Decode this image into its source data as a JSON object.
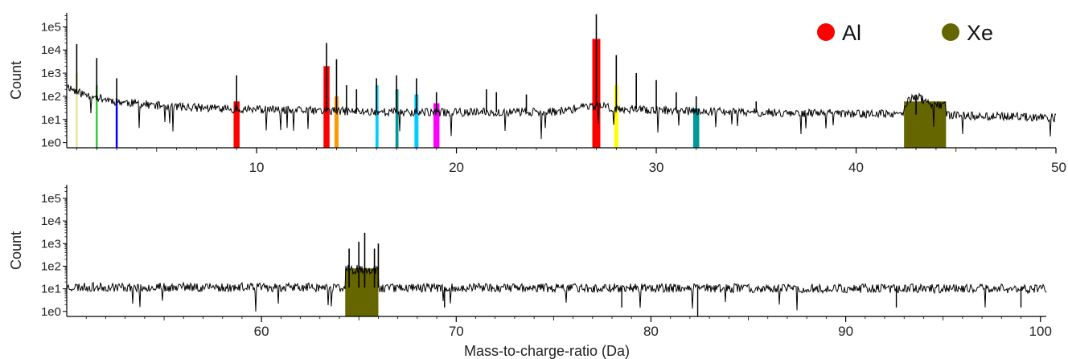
{
  "chart_data": [
    {
      "type": "line",
      "xlim": [
        0.5,
        50
      ],
      "ylim": [
        0.6,
        400000
      ],
      "y_scale": "log",
      "ylabel": "Count",
      "xlabel": "",
      "x_ticks": [
        "10",
        "20",
        "30",
        "40",
        "50"
      ],
      "y_ticks": [
        "1e0",
        "1e1",
        "1e2",
        "1e3",
        "1e4",
        "1e5"
      ],
      "legend": {
        "placement": "top-right",
        "entries": [
          {
            "label": "Al",
            "color": "#ff0000"
          },
          {
            "label": "Xe",
            "color": "#666600"
          }
        ]
      },
      "background": {
        "baseline": [
          [
            0.5,
            300
          ],
          [
            1,
            150
          ],
          [
            2,
            90
          ],
          [
            3,
            60
          ],
          [
            5,
            40
          ],
          [
            8,
            30
          ],
          [
            12,
            25
          ],
          [
            15,
            22
          ],
          [
            20,
            20
          ],
          [
            25,
            22
          ],
          [
            27,
            40
          ],
          [
            28,
            30
          ],
          [
            30,
            25
          ],
          [
            35,
            20
          ],
          [
            40,
            18
          ],
          [
            45,
            15
          ],
          [
            50,
            12
          ]
        ],
        "noise": 0.18,
        "seed": 11
      },
      "peaks": [
        {
          "x": 1.0,
          "count": 18000
        },
        {
          "x": 2.0,
          "count": 4500
        },
        {
          "x": 3.0,
          "count": 600
        },
        {
          "x": 9.0,
          "count": 800
        },
        {
          "x": 13.5,
          "count": 20000
        },
        {
          "x": 14.0,
          "count": 4000
        },
        {
          "x": 14.5,
          "count": 300
        },
        {
          "x": 15.0,
          "count": 200
        },
        {
          "x": 16.0,
          "count": 600
        },
        {
          "x": 17.0,
          "count": 800
        },
        {
          "x": 18.0,
          "count": 600
        },
        {
          "x": 19.0,
          "count": 150
        },
        {
          "x": 21.5,
          "count": 200
        },
        {
          "x": 22.0,
          "count": 150
        },
        {
          "x": 23.5,
          "count": 120
        },
        {
          "x": 27.0,
          "count": 350000
        },
        {
          "x": 28.0,
          "count": 6000
        },
        {
          "x": 29.0,
          "count": 1000
        },
        {
          "x": 30.0,
          "count": 500
        },
        {
          "x": 31.0,
          "count": 150
        },
        {
          "x": 32.0,
          "count": 100
        },
        {
          "x": 35.0,
          "count": 60
        },
        {
          "x": 43.0,
          "count": 120
        }
      ],
      "bands": [
        {
          "x0": 0.95,
          "x1": 1.05,
          "color": "#e6e6a0",
          "top": 1000
        },
        {
          "x0": 1.95,
          "x1": 2.05,
          "color": "#33cc33",
          "top": 300
        },
        {
          "x0": 2.95,
          "x1": 3.05,
          "color": "#0000ff",
          "top": 80
        },
        {
          "x0": 8.85,
          "x1": 9.15,
          "color": "#ff0000",
          "top": 60
        },
        {
          "x0": 13.35,
          "x1": 13.65,
          "color": "#ff0000",
          "top": 2000
        },
        {
          "x0": 13.9,
          "x1": 14.1,
          "color": "#ff9900",
          "top": 100
        },
        {
          "x0": 15.95,
          "x1": 16.1,
          "color": "#00ccff",
          "top": 300
        },
        {
          "x0": 16.95,
          "x1": 17.1,
          "color": "#009999",
          "top": 200
        },
        {
          "x0": 17.9,
          "x1": 18.1,
          "color": "#00ccff",
          "top": 120
        },
        {
          "x0": 18.85,
          "x1": 19.15,
          "color": "#ff00ff",
          "top": 50
        },
        {
          "x0": 26.8,
          "x1": 27.2,
          "color": "#ff0000",
          "top": 30000
        },
        {
          "x0": 27.9,
          "x1": 28.1,
          "color": "#ffff00",
          "top": 300
        },
        {
          "x0": 31.85,
          "x1": 32.15,
          "color": "#009999",
          "top": 30
        },
        {
          "x0": 42.4,
          "x1": 44.5,
          "color": "#666600",
          "top": 60
        }
      ]
    },
    {
      "type": "line",
      "xlim": [
        50,
        100.3
      ],
      "ylim": [
        0.6,
        400000
      ],
      "y_scale": "log",
      "ylabel": "Count",
      "xlabel": "Mass-to-charge-ratio  (Da)",
      "x_ticks": [
        "60",
        "70",
        "80",
        "90",
        "100"
      ],
      "y_ticks": [
        "1e0",
        "1e1",
        "1e2",
        "1e3",
        "1e4",
        "1e5"
      ],
      "background": {
        "baseline": [
          [
            50,
            12
          ],
          [
            100,
            10
          ]
        ],
        "noise": 0.2,
        "seed": 23
      },
      "peaks": [
        {
          "x": 64.5,
          "count": 600
        },
        {
          "x": 65.0,
          "count": 1200
        },
        {
          "x": 65.3,
          "count": 3000
        },
        {
          "x": 65.8,
          "count": 600
        },
        {
          "x": 66.0,
          "count": 1000
        }
      ],
      "dips": [
        {
          "x": 69.4,
          "count": 1.5
        },
        {
          "x": 78.5,
          "count": 1.5
        },
        {
          "x": 82.4,
          "count": 0.6
        },
        {
          "x": 92.6,
          "count": 1.5
        },
        {
          "x": 99.0,
          "count": 1.5
        }
      ],
      "bands": [
        {
          "x0": 64.3,
          "x1": 66.0,
          "color": "#666600",
          "top": 80
        }
      ]
    }
  ]
}
